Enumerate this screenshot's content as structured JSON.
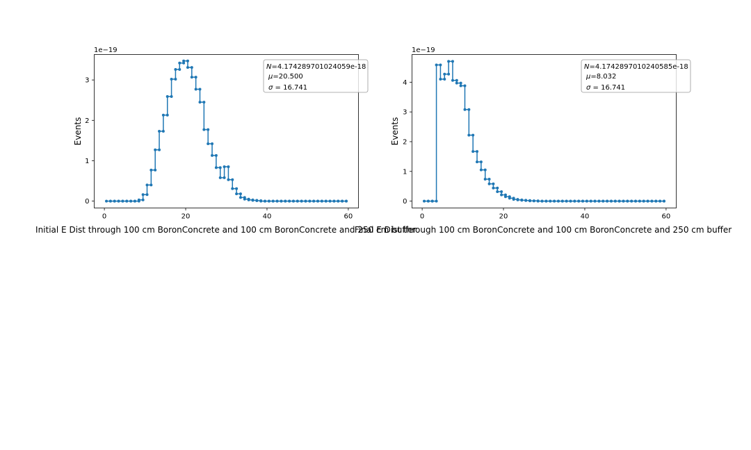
{
  "chart_data": [
    {
      "type": "line",
      "step": "post",
      "marker": "dot",
      "xlabel": "Initial E Dist through 100 cm BoronConcrete and 100 cm BoronConcrete and 250 cm buffer",
      "ylabel": "Events",
      "y_offset_text": "1e−19",
      "xlim": [
        -2.5,
        62.5
      ],
      "ylim": [
        -0.17,
        3.63
      ],
      "x_ticks": [
        0,
        20,
        40,
        60
      ],
      "y_ticks": [
        0,
        1,
        2,
        3
      ],
      "legend": {
        "placement": "top-right",
        "lines": [
          "N=4.174289701024059e-18",
          "μ=20.500",
          "σ = 16.741"
        ]
      },
      "series": [
        {
          "color": "#1f77b4",
          "x": [
            0.5,
            1.5,
            2.5,
            3.5,
            4.5,
            5.5,
            6.5,
            7.5,
            8.5,
            9.5,
            10.5,
            11.5,
            12.5,
            13.5,
            14.5,
            15.5,
            16.5,
            17.5,
            18.5,
            19.5,
            20.5,
            21.5,
            22.5,
            23.5,
            24.5,
            25.5,
            26.5,
            27.5,
            28.5,
            29.5,
            30.5,
            31.5,
            32.5,
            33.5,
            34.5,
            35.5,
            36.5,
            37.5,
            38.5,
            39.5,
            40.5,
            41.5,
            42.5,
            43.5,
            44.5,
            45.5,
            46.5,
            47.5,
            48.5,
            49.5,
            50.5,
            51.5,
            52.5,
            53.5,
            54.5,
            55.5,
            56.5,
            57.5,
            58.5,
            59.5
          ],
          "y": [
            0,
            0,
            0,
            0,
            0,
            0,
            0,
            0,
            0.03,
            0.16,
            0.4,
            0.77,
            1.27,
            1.73,
            2.13,
            2.59,
            3.02,
            3.26,
            3.42,
            3.47,
            3.31,
            3.07,
            2.77,
            2.45,
            1.77,
            1.42,
            1.13,
            0.83,
            0.58,
            0.85,
            0.53,
            0.31,
            0.18,
            0.09,
            0.05,
            0.03,
            0.02,
            0.01,
            0,
            0,
            0,
            0,
            0,
            0,
            0,
            0,
            0,
            0,
            0,
            0,
            0,
            0,
            0,
            0,
            0,
            0,
            0,
            0,
            0,
            0
          ]
        }
      ]
    },
    {
      "type": "line",
      "step": "post",
      "marker": "dot",
      "xlabel": "Final E Dist through 100 cm BoronConcrete and 100 cm BoronConcrete and 250 cm buffer",
      "ylabel": "Events",
      "y_offset_text": "1e−19",
      "xlim": [
        -2.5,
        62.5
      ],
      "ylim": [
        -0.23,
        4.93
      ],
      "x_ticks": [
        0,
        20,
        40,
        60
      ],
      "y_ticks": [
        0,
        1,
        2,
        3,
        4
      ],
      "legend": {
        "placement": "top-right",
        "lines": [
          "N=4.1742897010240585e-18",
          "μ=8.032",
          "σ = 16.741"
        ]
      },
      "series": [
        {
          "color": "#1f77b4",
          "x": [
            0.5,
            1.5,
            2.5,
            3.5,
            4.5,
            5.5,
            6.5,
            7.5,
            8.5,
            9.5,
            10.5,
            11.5,
            12.5,
            13.5,
            14.5,
            15.5,
            16.5,
            17.5,
            18.5,
            19.5,
            20.5,
            21.5,
            22.5,
            23.5,
            24.5,
            25.5,
            26.5,
            27.5,
            28.5,
            29.5,
            30.5,
            31.5,
            32.5,
            33.5,
            34.5,
            35.5,
            36.5,
            37.5,
            38.5,
            39.5,
            40.5,
            41.5,
            42.5,
            43.5,
            44.5,
            45.5,
            46.5,
            47.5,
            48.5,
            49.5,
            50.5,
            51.5,
            52.5,
            53.5,
            54.5,
            55.5,
            56.5,
            57.5,
            58.5,
            59.5
          ],
          "y": [
            0,
            0,
            0,
            4.58,
            4.1,
            4.27,
            4.7,
            4.06,
            3.97,
            3.88,
            3.08,
            2.22,
            1.67,
            1.32,
            1.05,
            0.74,
            0.58,
            0.44,
            0.32,
            0.21,
            0.15,
            0.1,
            0.06,
            0.04,
            0.03,
            0.02,
            0.01,
            0.01,
            0,
            0,
            0,
            0,
            0,
            0,
            0,
            0,
            0,
            0,
            0,
            0,
            0,
            0,
            0,
            0,
            0,
            0,
            0,
            0,
            0,
            0,
            0,
            0,
            0,
            0,
            0,
            0,
            0,
            0,
            0,
            0
          ]
        }
      ]
    }
  ]
}
